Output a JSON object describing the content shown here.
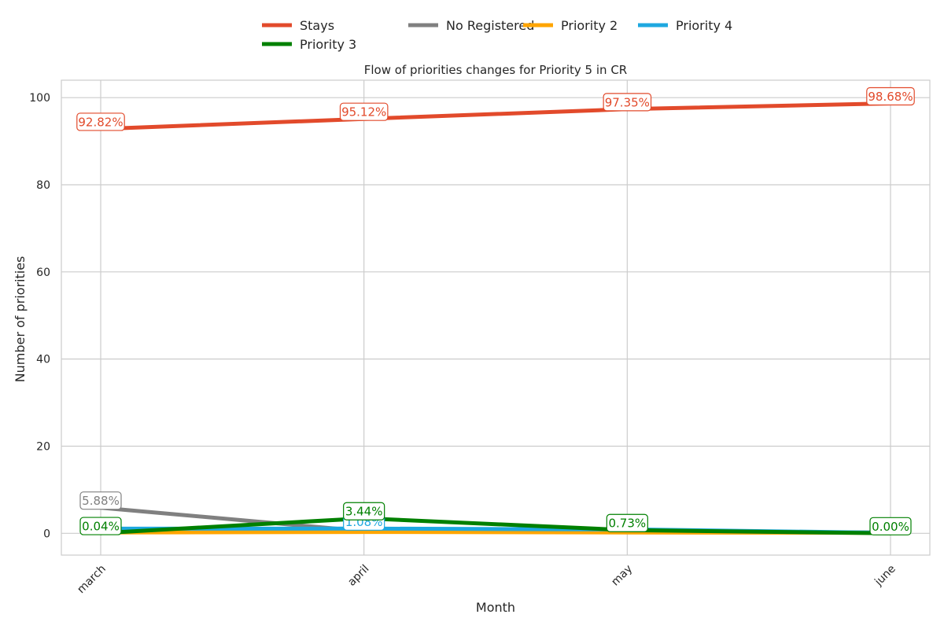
{
  "chart_data": {
    "type": "line",
    "title": "Flow of priorities changes for Priority 5 in CR",
    "xlabel": "Month",
    "ylabel": "Number of priorities",
    "categories": [
      "march",
      "april",
      "may",
      "june"
    ],
    "ylim": [
      -5,
      104
    ],
    "yticks": [
      0,
      20,
      40,
      60,
      80,
      100
    ],
    "grid": true,
    "legend_position": "top-center",
    "series": [
      {
        "name": "Stays",
        "color": "#e24a2b",
        "values": [
          92.82,
          95.12,
          97.35,
          98.68
        ],
        "labels": [
          "92.82%",
          "95.12%",
          "97.35%",
          "98.68%"
        ]
      },
      {
        "name": "No Registered",
        "color": "#808080",
        "values": [
          5.88,
          0.5,
          0.3,
          0.2
        ],
        "labels": [
          "5.88%",
          "",
          "",
          ""
        ]
      },
      {
        "name": "Priority 2",
        "color": "#ffa500",
        "values": [
          0.2,
          0.3,
          0.2,
          0.1
        ],
        "labels": [
          "",
          "",
          "",
          ""
        ]
      },
      {
        "name": "Priority 4",
        "color": "#1ea8e0",
        "values": [
          1.06,
          1.08,
          0.9,
          0.1
        ],
        "labels": [
          "",
          "1.08%",
          "",
          ""
        ]
      },
      {
        "name": "Priority 3",
        "color": "#008000",
        "values": [
          0.04,
          3.44,
          0.73,
          0.0
        ],
        "labels": [
          "0.04%",
          "3.44%",
          "0.73%",
          "0.00%"
        ]
      }
    ]
  }
}
